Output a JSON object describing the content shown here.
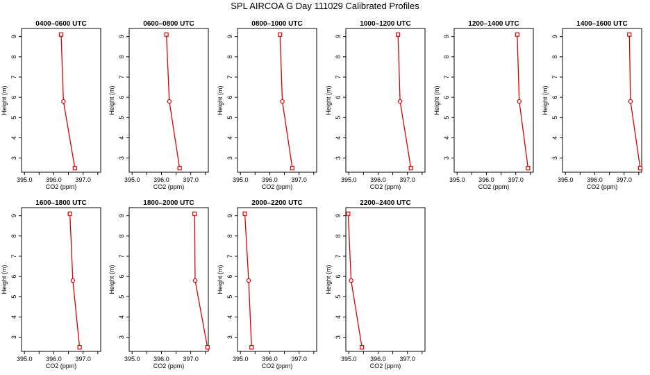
{
  "page": {
    "title": "SPL AIRCOA G  Day 111029  Calibrated Profiles"
  },
  "colors": {
    "line": "#dd0000",
    "axis": "#000000"
  },
  "chart_data": [
    {
      "type": "line",
      "title": "0400–0600 UTC",
      "xlabel": "CO2 (ppm)",
      "ylabel": "Height (m)",
      "xlim": [
        394.9,
        397.6
      ],
      "ylim": [
        2.3,
        9.4
      ],
      "xticks": [
        "395.0",
        "396.0",
        "397.0"
      ],
      "yticks": [
        "3",
        "4",
        "5",
        "6",
        "7",
        "8",
        "9"
      ],
      "grid": false,
      "series": [
        {
          "x": [
            396.72,
            396.33,
            396.25
          ],
          "y": [
            2.5,
            5.8,
            9.1
          ]
        }
      ]
    },
    {
      "type": "line",
      "title": "0600–0800 UTC",
      "xlabel": "CO2 (ppm)",
      "ylabel": "Height (m)",
      "xlim": [
        394.9,
        397.6
      ],
      "ylim": [
        2.3,
        9.4
      ],
      "xticks": [
        "395.0",
        "396.0",
        "397.0"
      ],
      "yticks": [
        "3",
        "4",
        "5",
        "6",
        "7",
        "8",
        "9"
      ],
      "grid": false,
      "series": [
        {
          "x": [
            396.62,
            396.27,
            396.17
          ],
          "y": [
            2.5,
            5.8,
            9.1
          ]
        }
      ]
    },
    {
      "type": "line",
      "title": "0800–1000 UTC",
      "xlabel": "CO2 (ppm)",
      "ylabel": "Height (m)",
      "xlim": [
        394.9,
        397.6
      ],
      "ylim": [
        2.3,
        9.4
      ],
      "xticks": [
        "395.0",
        "396.0",
        "397.0"
      ],
      "yticks": [
        "3",
        "4",
        "5",
        "6",
        "7",
        "8",
        "9"
      ],
      "grid": false,
      "series": [
        {
          "x": [
            396.77,
            396.43,
            396.35
          ],
          "y": [
            2.5,
            5.8,
            9.1
          ]
        }
      ]
    },
    {
      "type": "line",
      "title": "1000–1200 UTC",
      "xlabel": "CO2 (ppm)",
      "ylabel": "Height (m)",
      "xlim": [
        394.9,
        397.6
      ],
      "ylim": [
        2.3,
        9.4
      ],
      "xticks": [
        "395.0",
        "396.0",
        "397.0"
      ],
      "yticks": [
        "3",
        "4",
        "5",
        "6",
        "7",
        "8",
        "9"
      ],
      "grid": false,
      "series": [
        {
          "x": [
            397.12,
            396.75,
            396.68
          ],
          "y": [
            2.5,
            5.8,
            9.1
          ]
        }
      ]
    },
    {
      "type": "line",
      "title": "1200–1400 UTC",
      "xlabel": "CO2 (ppm)",
      "ylabel": "Height (m)",
      "xlim": [
        394.9,
        397.6
      ],
      "ylim": [
        2.3,
        9.4
      ],
      "xticks": [
        "395.0",
        "396.0",
        "397.0"
      ],
      "yticks": [
        "3",
        "4",
        "5",
        "6",
        "7",
        "8",
        "9"
      ],
      "grid": false,
      "series": [
        {
          "x": [
            397.42,
            397.12,
            397.05
          ],
          "y": [
            2.5,
            5.8,
            9.1
          ]
        }
      ]
    },
    {
      "type": "line",
      "title": "1400–1600 UTC",
      "xlabel": "CO2 (ppm)",
      "ylabel": "Height (m)",
      "xlim": [
        394.9,
        397.6
      ],
      "ylim": [
        2.3,
        9.4
      ],
      "xticks": [
        "395.0",
        "396.0",
        "397.0"
      ],
      "yticks": [
        "3",
        "4",
        "5",
        "6",
        "7",
        "8",
        "9"
      ],
      "grid": false,
      "series": [
        {
          "x": [
            397.55,
            397.22,
            397.18
          ],
          "y": [
            2.5,
            5.8,
            9.1
          ]
        }
      ]
    },
    {
      "type": "line",
      "title": "1600–1800 UTC",
      "xlabel": "CO2 (ppm)",
      "ylabel": "Height (m)",
      "xlim": [
        394.9,
        397.6
      ],
      "ylim": [
        2.3,
        9.4
      ],
      "xticks": [
        "395.0",
        "396.0",
        "397.0"
      ],
      "yticks": [
        "3",
        "4",
        "5",
        "6",
        "7",
        "8",
        "9"
      ],
      "grid": false,
      "series": [
        {
          "x": [
            396.88,
            396.65,
            396.55
          ],
          "y": [
            2.5,
            5.8,
            9.1
          ]
        }
      ]
    },
    {
      "type": "line",
      "title": "1800–2000 UTC",
      "xlabel": "CO2 (ppm)",
      "ylabel": "Height (m)",
      "xlim": [
        394.9,
        397.6
      ],
      "ylim": [
        2.3,
        9.4
      ],
      "xticks": [
        "395.0",
        "396.0",
        "397.0"
      ],
      "yticks": [
        "3",
        "4",
        "5",
        "6",
        "7",
        "8",
        "9"
      ],
      "grid": false,
      "series": [
        {
          "x": [
            397.57,
            397.15,
            397.13
          ],
          "y": [
            2.5,
            5.8,
            9.1
          ]
        }
      ]
    },
    {
      "type": "line",
      "title": "2000–2200 UTC",
      "xlabel": "CO2 (ppm)",
      "ylabel": "Height (m)",
      "xlim": [
        394.9,
        397.6
      ],
      "ylim": [
        2.3,
        9.4
      ],
      "xticks": [
        "395.0",
        "396.0",
        "397.0"
      ],
      "yticks": [
        "3",
        "4",
        "5",
        "6",
        "7",
        "8",
        "9"
      ],
      "grid": false,
      "series": [
        {
          "x": [
            395.38,
            395.28,
            395.15
          ],
          "y": [
            2.5,
            5.8,
            9.1
          ]
        }
      ]
    },
    {
      "type": "line",
      "title": "2200–2400 UTC",
      "xlabel": "CO2 (ppm)",
      "ylabel": "Height (m)",
      "xlim": [
        394.9,
        397.6
      ],
      "ylim": [
        2.3,
        9.4
      ],
      "xticks": [
        "395.0",
        "396.0",
        "397.0"
      ],
      "yticks": [
        "3",
        "4",
        "5",
        "6",
        "7",
        "8",
        "9"
      ],
      "grid": false,
      "series": [
        {
          "x": [
            395.45,
            395.08,
            394.98
          ],
          "y": [
            2.5,
            5.8,
            9.1
          ]
        }
      ]
    }
  ]
}
